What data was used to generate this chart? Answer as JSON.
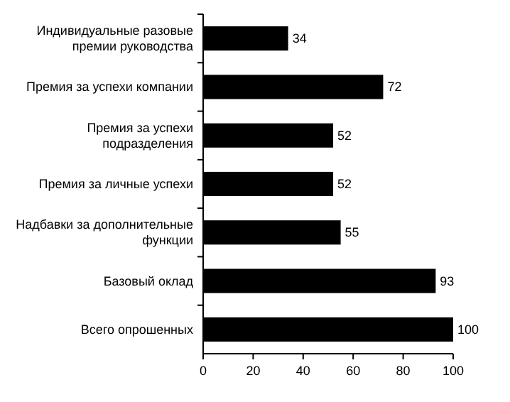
{
  "chart_data": {
    "type": "bar",
    "orientation": "horizontal",
    "categories": [
      "Индивидуальные разовые премии руководства",
      "Премия за успехи компании",
      "Премия за успехи подразделения",
      "Премия за личные успехи",
      "Надбавки за дополнительные функции",
      "Базовый оклад",
      "Всего опрошенных"
    ],
    "values": [
      34,
      72,
      52,
      52,
      55,
      93,
      100
    ],
    "color": "#000000",
    "xlim": [
      0,
      100
    ],
    "xticks": [
      0,
      20,
      40,
      60,
      80,
      100
    ],
    "data_labels": true,
    "grid": false
  }
}
